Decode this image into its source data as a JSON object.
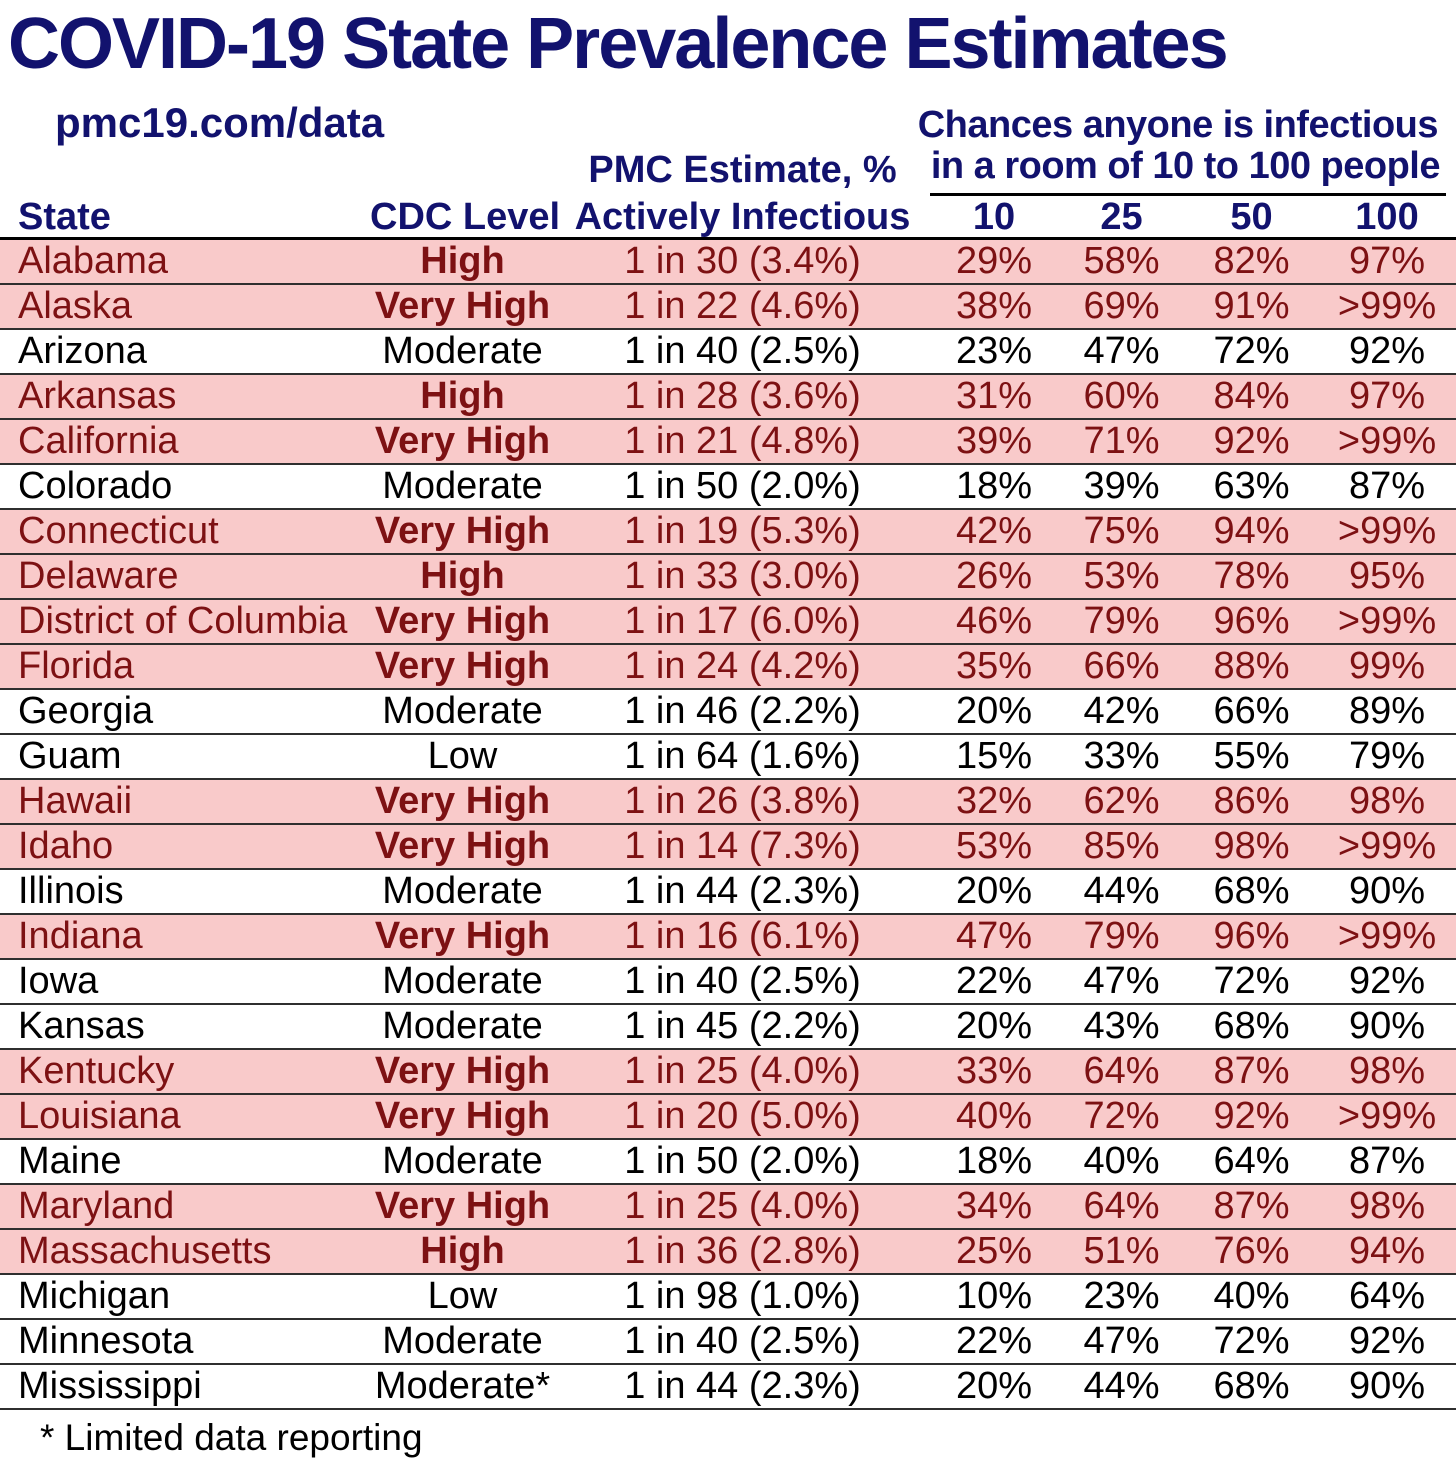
{
  "page": {
    "title": "COVID-19 State Prevalence Estimates",
    "site_url": "pmc19.com/data",
    "chances_header_line1": "Chances anyone is infectious",
    "chances_header_line2": "in a room of 10 to 100 people",
    "footnote": "* Limited data reporting"
  },
  "colors": {
    "navy": "#12126e",
    "maroon": "#7d1113",
    "pink": "#f9caca",
    "row_divider": "#2f2f2f",
    "header_rule": "#000000"
  },
  "chart_data": {
    "type": "table",
    "title": "COVID-19 State Prevalence Estimates",
    "column_headers": {
      "state": "State",
      "cdc_level": "CDC Level",
      "pmc_line1": "PMC Estimate, %",
      "pmc_line2": "Actively Infectious",
      "room_sizes": [
        "10",
        "25",
        "50",
        "100"
      ]
    },
    "highlight_note": "rows with CDC Level High or Very High are shown with pink background and maroon text",
    "rows": [
      {
        "state": "Alabama",
        "cdc_level": "High",
        "pmc_estimate": "1 in 30 (3.4%)",
        "p10": "29%",
        "p25": "58%",
        "p50": "82%",
        "p100": "97%",
        "highlighted": true
      },
      {
        "state": "Alaska",
        "cdc_level": "Very High",
        "pmc_estimate": "1 in 22 (4.6%)",
        "p10": "38%",
        "p25": "69%",
        "p50": "91%",
        "p100": ">99%",
        "highlighted": true
      },
      {
        "state": "Arizona",
        "cdc_level": "Moderate",
        "pmc_estimate": "1 in 40 (2.5%)",
        "p10": "23%",
        "p25": "47%",
        "p50": "72%",
        "p100": "92%",
        "highlighted": false
      },
      {
        "state": "Arkansas",
        "cdc_level": "High",
        "pmc_estimate": "1 in 28 (3.6%)",
        "p10": "31%",
        "p25": "60%",
        "p50": "84%",
        "p100": "97%",
        "highlighted": true
      },
      {
        "state": "California",
        "cdc_level": "Very High",
        "pmc_estimate": "1 in 21 (4.8%)",
        "p10": "39%",
        "p25": "71%",
        "p50": "92%",
        "p100": ">99%",
        "highlighted": true
      },
      {
        "state": "Colorado",
        "cdc_level": "Moderate",
        "pmc_estimate": "1 in 50 (2.0%)",
        "p10": "18%",
        "p25": "39%",
        "p50": "63%",
        "p100": "87%",
        "highlighted": false
      },
      {
        "state": "Connecticut",
        "cdc_level": "Very High",
        "pmc_estimate": "1 in 19 (5.3%)",
        "p10": "42%",
        "p25": "75%",
        "p50": "94%",
        "p100": ">99%",
        "highlighted": true
      },
      {
        "state": "Delaware",
        "cdc_level": "High",
        "pmc_estimate": "1 in 33 (3.0%)",
        "p10": "26%",
        "p25": "53%",
        "p50": "78%",
        "p100": "95%",
        "highlighted": true
      },
      {
        "state": "District of Columbia",
        "cdc_level": "Very High",
        "pmc_estimate": "1 in 17 (6.0%)",
        "p10": "46%",
        "p25": "79%",
        "p50": "96%",
        "p100": ">99%",
        "highlighted": true
      },
      {
        "state": "Florida",
        "cdc_level": "Very High",
        "pmc_estimate": "1 in 24 (4.2%)",
        "p10": "35%",
        "p25": "66%",
        "p50": "88%",
        "p100": "99%",
        "highlighted": true
      },
      {
        "state": "Georgia",
        "cdc_level": "Moderate",
        "pmc_estimate": "1 in 46 (2.2%)",
        "p10": "20%",
        "p25": "42%",
        "p50": "66%",
        "p100": "89%",
        "highlighted": false
      },
      {
        "state": "Guam",
        "cdc_level": "Low",
        "pmc_estimate": "1 in 64 (1.6%)",
        "p10": "15%",
        "p25": "33%",
        "p50": "55%",
        "p100": "79%",
        "highlighted": false
      },
      {
        "state": "Hawaii",
        "cdc_level": "Very High",
        "pmc_estimate": "1 in 26 (3.8%)",
        "p10": "32%",
        "p25": "62%",
        "p50": "86%",
        "p100": "98%",
        "highlighted": true
      },
      {
        "state": "Idaho",
        "cdc_level": "Very High",
        "pmc_estimate": "1 in 14 (7.3%)",
        "p10": "53%",
        "p25": "85%",
        "p50": "98%",
        "p100": ">99%",
        "highlighted": true
      },
      {
        "state": "Illinois",
        "cdc_level": "Moderate",
        "pmc_estimate": "1 in 44 (2.3%)",
        "p10": "20%",
        "p25": "44%",
        "p50": "68%",
        "p100": "90%",
        "highlighted": false
      },
      {
        "state": "Indiana",
        "cdc_level": "Very High",
        "pmc_estimate": "1 in 16 (6.1%)",
        "p10": "47%",
        "p25": "79%",
        "p50": "96%",
        "p100": ">99%",
        "highlighted": true
      },
      {
        "state": "Iowa",
        "cdc_level": "Moderate",
        "pmc_estimate": "1 in 40 (2.5%)",
        "p10": "22%",
        "p25": "47%",
        "p50": "72%",
        "p100": "92%",
        "highlighted": false
      },
      {
        "state": "Kansas",
        "cdc_level": "Moderate",
        "pmc_estimate": "1 in 45 (2.2%)",
        "p10": "20%",
        "p25": "43%",
        "p50": "68%",
        "p100": "90%",
        "highlighted": false
      },
      {
        "state": "Kentucky",
        "cdc_level": "Very High",
        "pmc_estimate": "1 in 25 (4.0%)",
        "p10": "33%",
        "p25": "64%",
        "p50": "87%",
        "p100": "98%",
        "highlighted": true
      },
      {
        "state": "Louisiana",
        "cdc_level": "Very High",
        "pmc_estimate": "1 in 20 (5.0%)",
        "p10": "40%",
        "p25": "72%",
        "p50": "92%",
        "p100": ">99%",
        "highlighted": true
      },
      {
        "state": "Maine",
        "cdc_level": "Moderate",
        "pmc_estimate": "1 in 50 (2.0%)",
        "p10": "18%",
        "p25": "40%",
        "p50": "64%",
        "p100": "87%",
        "highlighted": false
      },
      {
        "state": "Maryland",
        "cdc_level": "Very High",
        "pmc_estimate": "1 in 25 (4.0%)",
        "p10": "34%",
        "p25": "64%",
        "p50": "87%",
        "p100": "98%",
        "highlighted": true
      },
      {
        "state": "Massachusetts",
        "cdc_level": "High",
        "pmc_estimate": "1 in 36 (2.8%)",
        "p10": "25%",
        "p25": "51%",
        "p50": "76%",
        "p100": "94%",
        "highlighted": true
      },
      {
        "state": "Michigan",
        "cdc_level": "Low",
        "pmc_estimate": "1 in 98 (1.0%)",
        "p10": "10%",
        "p25": "23%",
        "p50": "40%",
        "p100": "64%",
        "highlighted": false
      },
      {
        "state": "Minnesota",
        "cdc_level": "Moderate",
        "pmc_estimate": "1 in 40 (2.5%)",
        "p10": "22%",
        "p25": "47%",
        "p50": "72%",
        "p100": "92%",
        "highlighted": false
      },
      {
        "state": "Mississippi",
        "cdc_level": "Moderate*",
        "pmc_estimate": "1 in 44 (2.3%)",
        "p10": "20%",
        "p25": "44%",
        "p50": "68%",
        "p100": "90%",
        "highlighted": false
      }
    ]
  }
}
